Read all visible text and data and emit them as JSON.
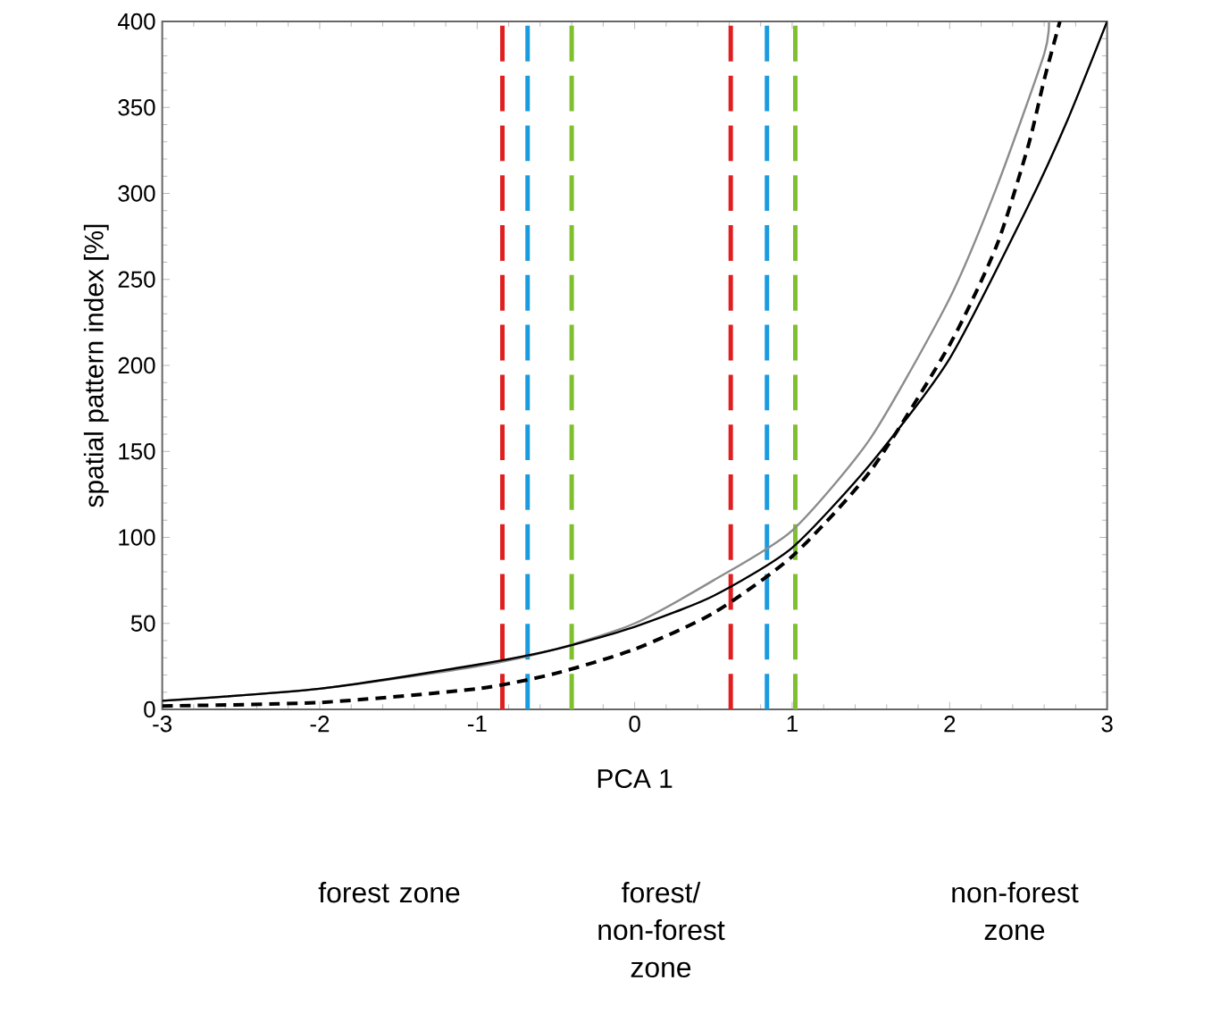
{
  "chart_data": {
    "type": "line",
    "xlabel": "PCA 1",
    "ylabel": "spatial pattern index [%]",
    "xlim": [
      -3,
      3
    ],
    "ylim": [
      0,
      400
    ],
    "xticks": [
      -3,
      -2,
      -1,
      0,
      1,
      2,
      3
    ],
    "yticks": [
      0,
      50,
      100,
      150,
      200,
      250,
      300,
      350,
      400
    ],
    "grid": false,
    "series": [
      {
        "color": "#8c8c8c",
        "line_style": "solid",
        "x": [
          -3,
          -2,
          -1,
          -0.5,
          0,
          0.5,
          1,
          1.5,
          2,
          2.3,
          2.6,
          2.63
        ],
        "values": [
          5,
          12,
          25,
          35,
          50,
          75,
          104,
          158,
          239,
          304,
          381,
          400
        ]
      },
      {
        "color": "#000000",
        "line_style": "solid",
        "x": [
          -3,
          -2,
          -1,
          -0.5,
          0,
          0.5,
          1,
          1.5,
          2,
          2.5,
          2.75,
          3
        ],
        "values": [
          5,
          12,
          26,
          35,
          48,
          66,
          94,
          143,
          204,
          293,
          343,
          400
        ]
      },
      {
        "color": "#000000",
        "line_style": "dashed",
        "x": [
          -3,
          -2,
          -1,
          -0.5,
          0,
          0.5,
          1,
          1.5,
          2,
          2.3,
          2.5,
          2.6,
          2.7
        ],
        "values": [
          2,
          4,
          12,
          21,
          35,
          56,
          89,
          139,
          212,
          270,
          328,
          366,
          400
        ]
      }
    ],
    "ref_lines": [
      {
        "axis": "x",
        "value": -0.84,
        "color": "#e02020",
        "line_style": "dashed"
      },
      {
        "axis": "x",
        "value": -0.68,
        "color": "#1a9be0",
        "line_style": "dashed"
      },
      {
        "axis": "x",
        "value": -0.4,
        "color": "#80c030",
        "line_style": "dashed"
      },
      {
        "axis": "x",
        "value": 0.61,
        "color": "#e02020",
        "line_style": "dashed"
      },
      {
        "axis": "x",
        "value": 0.84,
        "color": "#1a9be0",
        "line_style": "dashed"
      },
      {
        "axis": "x",
        "value": 1.02,
        "color": "#80c030",
        "line_style": "dashed"
      }
    ],
    "annotations": [
      "forest zone",
      "forest/ non-forest zone",
      "non-forest zone"
    ]
  }
}
